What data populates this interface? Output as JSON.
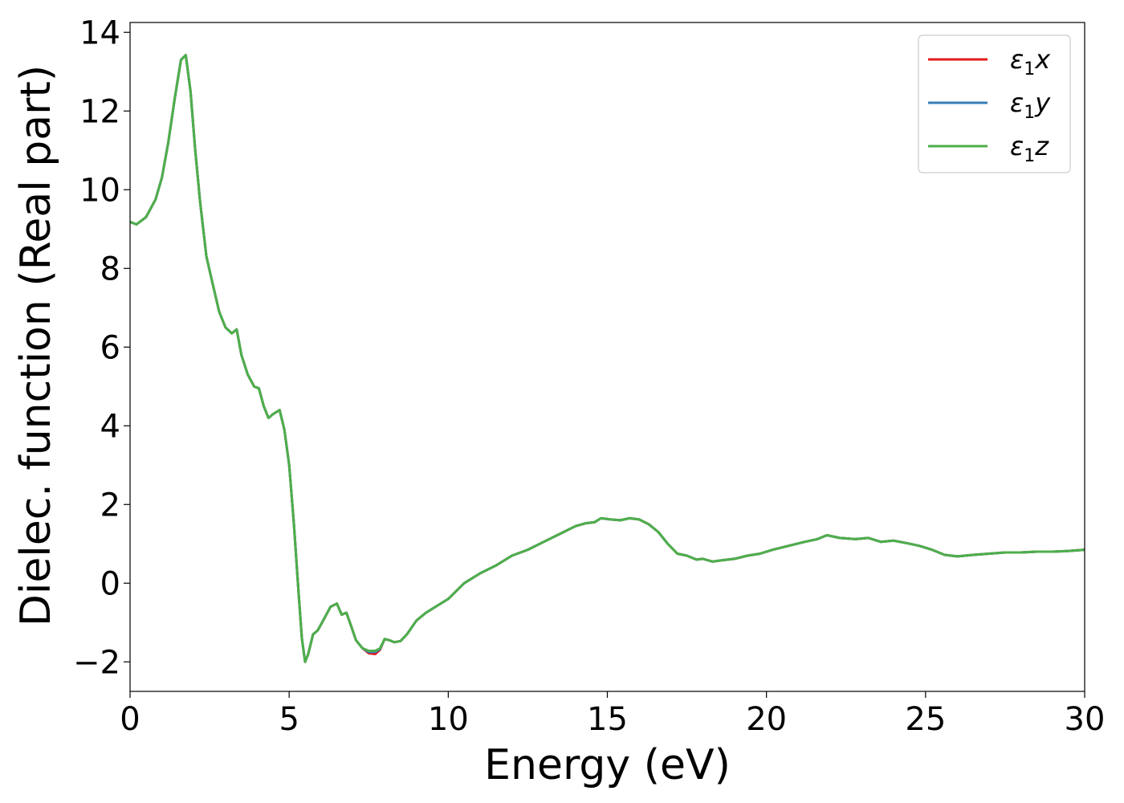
{
  "chart_data": {
    "type": "line",
    "xlabel": "Energy (eV)",
    "ylabel": "Dielec. function (Real part)",
    "xlim": [
      0,
      30
    ],
    "ylim": [
      -2.75,
      14.25
    ],
    "x_ticks": [
      0,
      5,
      10,
      15,
      20,
      25,
      30
    ],
    "x_tick_labels": [
      "0",
      "5",
      "10",
      "15",
      "20",
      "25",
      "30"
    ],
    "y_ticks": [
      -2,
      0,
      2,
      4,
      6,
      8,
      10,
      12,
      14
    ],
    "y_tick_labels": [
      "−2",
      "0",
      "2",
      "4",
      "6",
      "8",
      "10",
      "12",
      "14"
    ],
    "grid": false,
    "legend_position": "top-right",
    "legend": [
      {
        "symbol": "ε",
        "sub": "1",
        "var": "x",
        "color": "#e41a1c"
      },
      {
        "symbol": "ε",
        "sub": "1",
        "var": "y",
        "color": "#377eb8"
      },
      {
        "symbol": "ε",
        "sub": "1",
        "var": "z",
        "color": "#4daf4a"
      }
    ],
    "x": [
      0,
      0.2,
      0.5,
      0.8,
      1.0,
      1.2,
      1.4,
      1.6,
      1.75,
      1.9,
      2.05,
      2.2,
      2.4,
      2.6,
      2.8,
      3.0,
      3.2,
      3.35,
      3.5,
      3.7,
      3.9,
      4.05,
      4.2,
      4.35,
      4.5,
      4.7,
      4.85,
      5.0,
      5.15,
      5.3,
      5.4,
      5.5,
      5.6,
      5.75,
      5.9,
      6.1,
      6.3,
      6.5,
      6.65,
      6.8,
      6.95,
      7.1,
      7.3,
      7.5,
      7.7,
      7.85,
      8.0,
      8.15,
      8.3,
      8.5,
      8.7,
      9.0,
      9.3,
      9.6,
      10.0,
      10.5,
      11.0,
      11.5,
      12.0,
      12.5,
      13.0,
      13.5,
      14.0,
      14.3,
      14.6,
      14.8,
      15.1,
      15.4,
      15.7,
      16.0,
      16.3,
      16.6,
      16.9,
      17.2,
      17.5,
      17.8,
      18.0,
      18.3,
      18.6,
      19.0,
      19.4,
      19.8,
      20.2,
      20.7,
      21.2,
      21.6,
      21.9,
      22.3,
      22.8,
      23.2,
      23.6,
      24.0,
      24.4,
      24.8,
      25.2,
      25.6,
      26.0,
      26.5,
      27.0,
      27.5,
      28.0,
      28.5,
      29.0,
      29.5,
      30.0
    ],
    "series": [
      {
        "name": "ε₁x",
        "color": "#e41a1c",
        "values": [
          9.18,
          9.12,
          9.3,
          9.75,
          10.3,
          11.2,
          12.3,
          13.3,
          13.42,
          12.5,
          11.0,
          9.7,
          8.3,
          7.6,
          6.9,
          6.5,
          6.35,
          6.45,
          5.8,
          5.3,
          5.0,
          4.95,
          4.5,
          4.2,
          4.3,
          4.4,
          3.9,
          3.0,
          1.5,
          -0.3,
          -1.4,
          -2.0,
          -1.8,
          -1.3,
          -1.2,
          -0.9,
          -0.6,
          -0.52,
          -0.8,
          -0.75,
          -1.1,
          -1.45,
          -1.65,
          -1.78,
          -1.8,
          -1.7,
          -1.42,
          -1.45,
          -1.5,
          -1.47,
          -1.3,
          -0.95,
          -0.75,
          -0.6,
          -0.4,
          0.0,
          0.25,
          0.45,
          0.7,
          0.85,
          1.05,
          1.25,
          1.45,
          1.52,
          1.55,
          1.65,
          1.62,
          1.6,
          1.65,
          1.62,
          1.5,
          1.3,
          1.0,
          0.75,
          0.7,
          0.6,
          0.62,
          0.55,
          0.58,
          0.62,
          0.7,
          0.75,
          0.85,
          0.95,
          1.05,
          1.12,
          1.22,
          1.15,
          1.12,
          1.15,
          1.05,
          1.08,
          1.02,
          0.95,
          0.85,
          0.72,
          0.68,
          0.72,
          0.75,
          0.78,
          0.78,
          0.8,
          0.8,
          0.82,
          0.85
        ]
      },
      {
        "name": "ε₁y",
        "color": "#377eb8",
        "values": [
          9.18,
          9.12,
          9.3,
          9.75,
          10.3,
          11.2,
          12.3,
          13.3,
          13.42,
          12.5,
          11.0,
          9.7,
          8.3,
          7.6,
          6.9,
          6.5,
          6.35,
          6.45,
          5.8,
          5.3,
          5.0,
          4.95,
          4.5,
          4.2,
          4.3,
          4.4,
          3.9,
          3.0,
          1.5,
          -0.3,
          -1.4,
          -2.0,
          -1.8,
          -1.3,
          -1.2,
          -0.9,
          -0.6,
          -0.52,
          -0.8,
          -0.75,
          -1.1,
          -1.45,
          -1.65,
          -1.75,
          -1.75,
          -1.68,
          -1.42,
          -1.45,
          -1.5,
          -1.47,
          -1.3,
          -0.95,
          -0.75,
          -0.6,
          -0.4,
          0.0,
          0.25,
          0.45,
          0.7,
          0.85,
          1.05,
          1.25,
          1.45,
          1.52,
          1.55,
          1.65,
          1.62,
          1.6,
          1.65,
          1.62,
          1.5,
          1.3,
          1.0,
          0.75,
          0.7,
          0.6,
          0.62,
          0.55,
          0.58,
          0.62,
          0.7,
          0.75,
          0.85,
          0.95,
          1.05,
          1.12,
          1.22,
          1.15,
          1.12,
          1.15,
          1.05,
          1.08,
          1.02,
          0.95,
          0.85,
          0.72,
          0.68,
          0.72,
          0.75,
          0.78,
          0.78,
          0.8,
          0.8,
          0.82,
          0.85
        ]
      },
      {
        "name": "ε₁z",
        "color": "#4daf4a",
        "values": [
          9.18,
          9.12,
          9.3,
          9.75,
          10.3,
          11.2,
          12.3,
          13.3,
          13.42,
          12.5,
          11.0,
          9.7,
          8.3,
          7.6,
          6.9,
          6.5,
          6.35,
          6.45,
          5.8,
          5.3,
          5.0,
          4.95,
          4.5,
          4.2,
          4.3,
          4.4,
          3.9,
          3.0,
          1.5,
          -0.3,
          -1.4,
          -2.0,
          -1.8,
          -1.3,
          -1.2,
          -0.9,
          -0.6,
          -0.52,
          -0.8,
          -0.75,
          -1.1,
          -1.45,
          -1.65,
          -1.72,
          -1.72,
          -1.66,
          -1.42,
          -1.45,
          -1.5,
          -1.47,
          -1.3,
          -0.95,
          -0.75,
          -0.6,
          -0.4,
          0.0,
          0.25,
          0.45,
          0.7,
          0.85,
          1.05,
          1.25,
          1.45,
          1.52,
          1.55,
          1.65,
          1.62,
          1.6,
          1.65,
          1.62,
          1.5,
          1.3,
          1.0,
          0.75,
          0.7,
          0.6,
          0.62,
          0.55,
          0.58,
          0.62,
          0.7,
          0.75,
          0.85,
          0.95,
          1.05,
          1.12,
          1.22,
          1.15,
          1.12,
          1.15,
          1.05,
          1.08,
          1.02,
          0.95,
          0.85,
          0.72,
          0.68,
          0.72,
          0.75,
          0.78,
          0.78,
          0.8,
          0.8,
          0.82,
          0.85
        ]
      }
    ]
  }
}
